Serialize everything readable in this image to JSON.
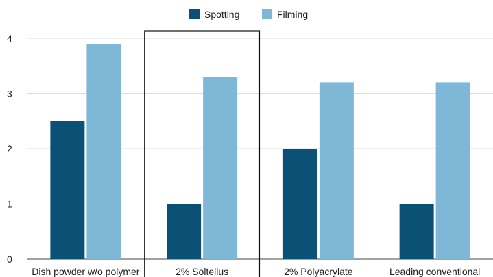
{
  "chart_data": {
    "type": "bar",
    "categories": [
      "Dish powder w/o polymer",
      "2% Soltellus",
      "2% Polyacrylate",
      "Leading conventional"
    ],
    "series": [
      {
        "name": "Spotting",
        "values": [
          2.5,
          1.0,
          2.0,
          1.0
        ],
        "color": "#0b5176"
      },
      {
        "name": "Filming",
        "values": [
          3.9,
          3.3,
          3.2,
          3.2
        ],
        "color": "#7fb7d6"
      }
    ],
    "yticks": [
      "0",
      "1",
      "2",
      "3",
      "4"
    ],
    "ylim": [
      0,
      4
    ],
    "grid": true,
    "legend_position": "top-center",
    "highlight_category": "2% Soltellus"
  }
}
